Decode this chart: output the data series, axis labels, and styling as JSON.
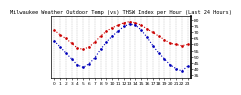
{
  "title": "Milwaukee Weather Outdoor Temp (vs) THSW Index per Hour (Last 24 Hours)",
  "hours": [
    0,
    1,
    2,
    3,
    4,
    5,
    6,
    7,
    8,
    9,
    10,
    11,
    12,
    13,
    14,
    15,
    16,
    17,
    18,
    19,
    20,
    21,
    22,
    23
  ],
  "temp": [
    72,
    68,
    65,
    61,
    57,
    56,
    58,
    62,
    67,
    71,
    74,
    76,
    78,
    79,
    78,
    76,
    73,
    70,
    67,
    64,
    61,
    60,
    59,
    60
  ],
  "thsw": [
    63,
    58,
    53,
    48,
    43,
    41,
    44,
    49,
    56,
    62,
    67,
    71,
    75,
    77,
    76,
    72,
    66,
    59,
    53,
    48,
    43,
    40,
    38,
    42
  ],
  "temp_color": "#cc0000",
  "thsw_color": "#0000bb",
  "bg_color": "#ffffff",
  "grid_color": "#999999",
  "ylim_min": 32,
  "ylim_max": 84,
  "yticks": [
    35,
    40,
    45,
    50,
    55,
    60,
    65,
    70,
    75,
    80
  ],
  "title_fontsize": 3.8,
  "tick_fontsize": 3.2,
  "markersize": 1.8,
  "linewidth": 0.8
}
